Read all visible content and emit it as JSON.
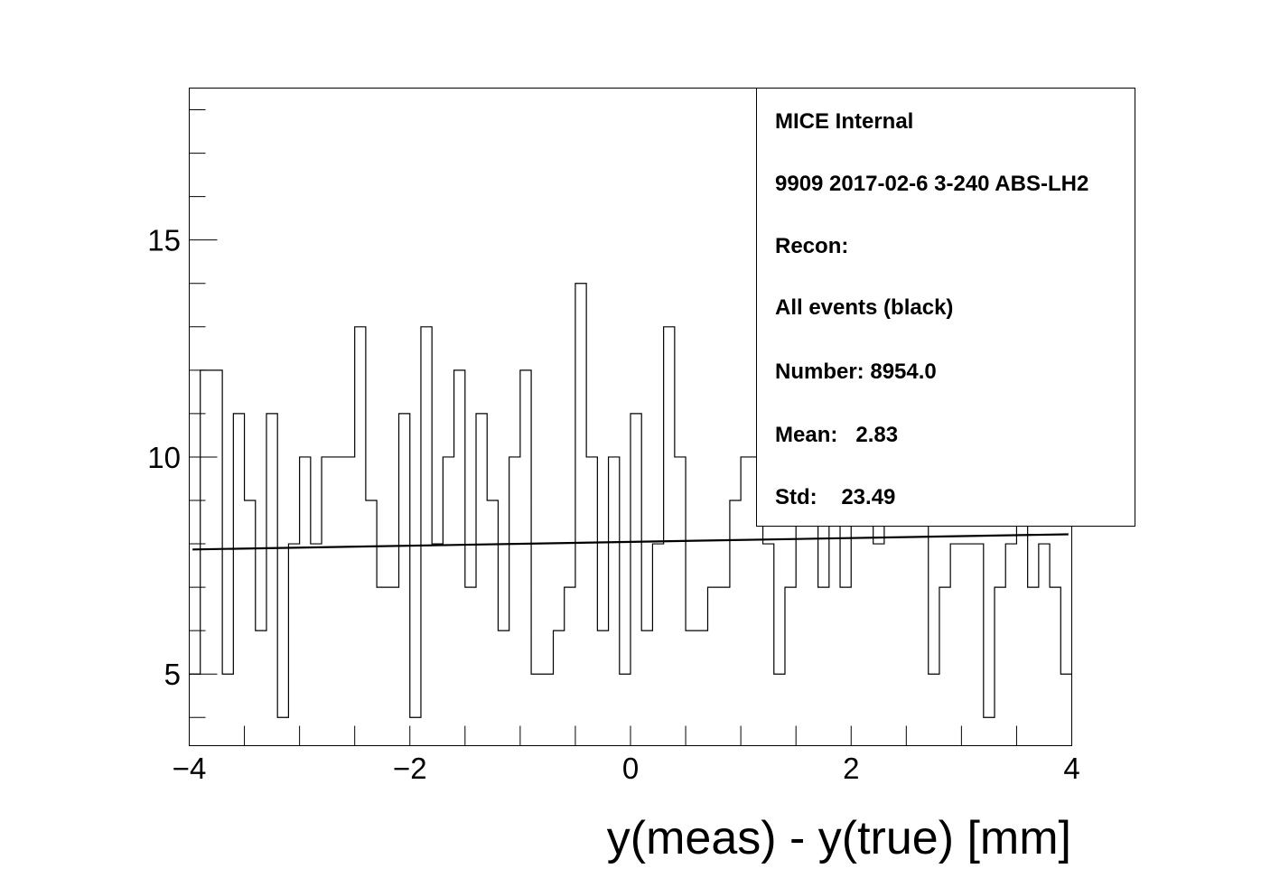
{
  "chart_data": {
    "type": "histogram",
    "title": "",
    "xlabel": "y(meas) - y(true) [mm]",
    "ylabel": "",
    "xlim": [
      -4,
      4
    ],
    "ylim": [
      3.35,
      18.5
    ],
    "x_ticks": [
      -4,
      -2,
      0,
      2,
      4
    ],
    "y_ticks": [
      5,
      10,
      15
    ],
    "bin_edges_range": [
      -4,
      4
    ],
    "bin_count": 80,
    "values": [
      5,
      12,
      12,
      5,
      11,
      9,
      6,
      11,
      4,
      8,
      10,
      8,
      10,
      10,
      10,
      13,
      9,
      7,
      7,
      11,
      4,
      13,
      8,
      10,
      12,
      7,
      11,
      9,
      6,
      10,
      12,
      5,
      5,
      6,
      7,
      14,
      10,
      6,
      10,
      5,
      11,
      6,
      8,
      13,
      10,
      6,
      6,
      7,
      7,
      9,
      10,
      10,
      8,
      5,
      7,
      11,
      12,
      7,
      10,
      7,
      12,
      11,
      8,
      9,
      11,
      9,
      10,
      5,
      7,
      8,
      8,
      8,
      4,
      7,
      8,
      9,
      7,
      8,
      7,
      5
    ],
    "fit_line": {
      "x": [
        -4,
        3.97
      ],
      "y": [
        7.87,
        8.22
      ]
    },
    "legend": "top-right",
    "stats_box": {
      "lines": [
        "MICE Internal",
        "9909 2017-02-6 3-240 ABS-LH2",
        "Recon:",
        "All events (black)",
        "Number: 8954.0",
        "Mean:   2.83",
        "Std:    23.49"
      ]
    }
  }
}
